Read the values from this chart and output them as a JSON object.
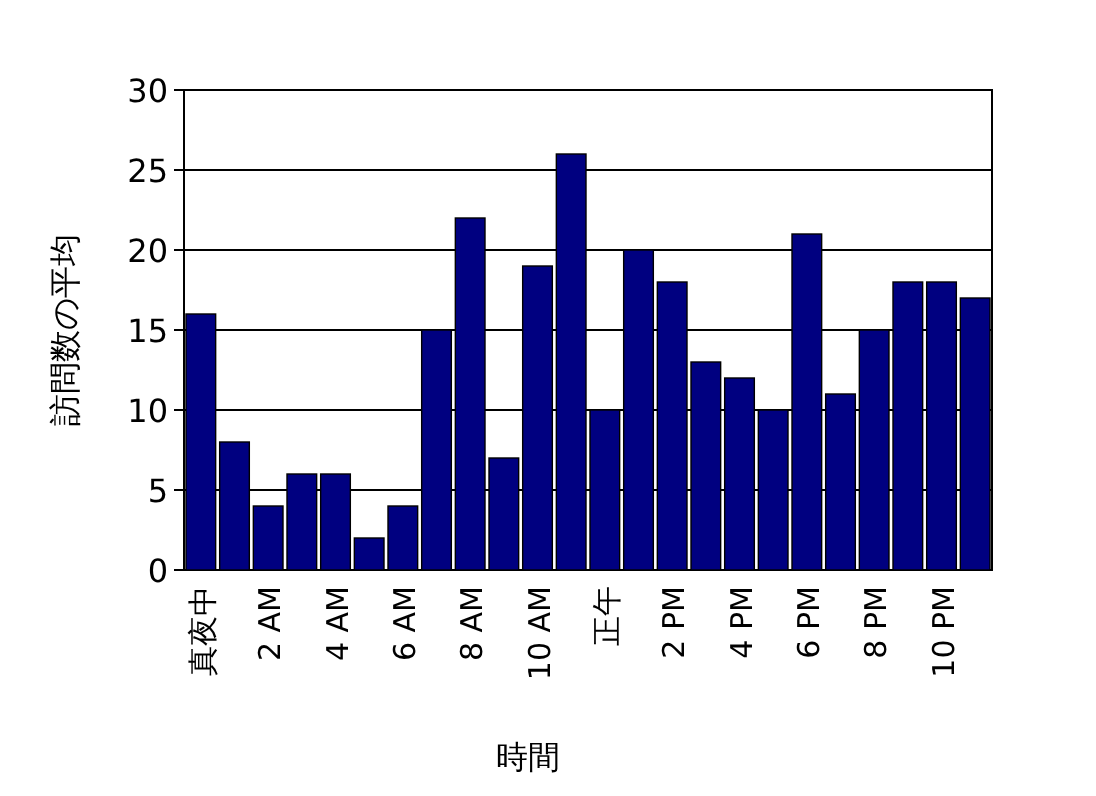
{
  "chart_data": {
    "type": "bar",
    "xlabel": "時間",
    "ylabel": "訪問数の平均",
    "categories": [
      "真夜中",
      null,
      "2 AM",
      null,
      "4 AM",
      null,
      "6 AM",
      null,
      "8 AM",
      null,
      "10 AM",
      null,
      "正午",
      null,
      "2 PM",
      null,
      "4 PM",
      null,
      "6 PM",
      null,
      "8 PM",
      null,
      "10 PM",
      null
    ],
    "values": [
      16,
      8,
      4,
      6,
      6,
      2,
      4,
      15,
      22,
      7,
      19,
      26,
      10,
      20,
      18,
      13,
      12,
      10,
      21,
      11,
      15,
      18,
      18,
      17
    ],
    "color": "#000080",
    "ylim": [
      0,
      30
    ],
    "yticks": [
      0,
      5,
      10,
      15,
      20,
      25,
      30
    ],
    "grid": "y"
  }
}
